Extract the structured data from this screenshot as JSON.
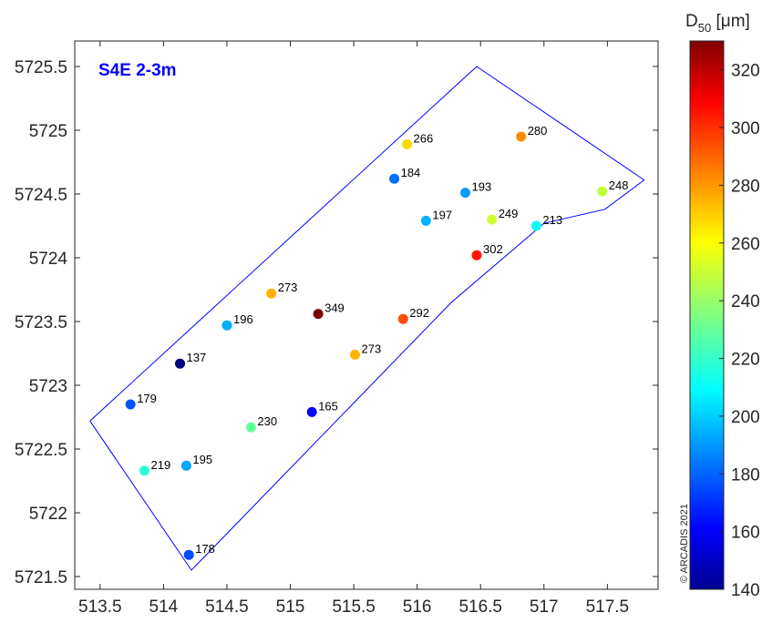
{
  "chart_data": {
    "type": "scatter",
    "title": "S4E 2-3m",
    "title_color": "#0000ff",
    "xlim": [
      513.3,
      517.9
    ],
    "ylim": [
      5721.4,
      5725.7
    ],
    "xticks": [
      513.5,
      514,
      514.5,
      515,
      515.5,
      516,
      516.5,
      517,
      517.5
    ],
    "xtick_labels": [
      "513.5",
      "514",
      "514.5",
      "515",
      "515.5",
      "516",
      "516.5",
      "517",
      "517.5"
    ],
    "yticks": [
      5721.5,
      5722,
      5722.5,
      5723,
      5723.5,
      5724,
      5724.5,
      5725,
      5725.5
    ],
    "ytick_labels": [
      "5721.5",
      "5722",
      "5722.5",
      "5723",
      "5723.5",
      "5724",
      "5724.5",
      "5725",
      "5725.5"
    ],
    "grid": false,
    "points": [
      {
        "x": 515.92,
        "y": 5724.89,
        "value": 266,
        "label": "266"
      },
      {
        "x": 516.82,
        "y": 5724.95,
        "value": 280,
        "label": "280"
      },
      {
        "x": 515.82,
        "y": 5724.62,
        "value": 184,
        "label": "184"
      },
      {
        "x": 516.38,
        "y": 5724.51,
        "value": 193,
        "label": "193"
      },
      {
        "x": 517.46,
        "y": 5724.52,
        "value": 248,
        "label": "248"
      },
      {
        "x": 516.07,
        "y": 5724.29,
        "value": 197,
        "label": "197"
      },
      {
        "x": 516.59,
        "y": 5724.3,
        "value": 249,
        "label": "249"
      },
      {
        "x": 516.94,
        "y": 5724.25,
        "value": 213,
        "label": "213"
      },
      {
        "x": 516.47,
        "y": 5724.02,
        "value": 302,
        "label": "302"
      },
      {
        "x": 514.85,
        "y": 5723.72,
        "value": 273,
        "label": "273"
      },
      {
        "x": 515.22,
        "y": 5723.56,
        "value": 349,
        "label": "349"
      },
      {
        "x": 514.5,
        "y": 5723.47,
        "value": 196,
        "label": "196"
      },
      {
        "x": 515.89,
        "y": 5723.52,
        "value": 292,
        "label": "292"
      },
      {
        "x": 515.51,
        "y": 5723.24,
        "value": 273,
        "label": "273"
      },
      {
        "x": 514.13,
        "y": 5723.17,
        "value": 137,
        "label": "137"
      },
      {
        "x": 513.74,
        "y": 5722.85,
        "value": 179,
        "label": "179"
      },
      {
        "x": 515.17,
        "y": 5722.79,
        "value": 165,
        "label": "165"
      },
      {
        "x": 514.69,
        "y": 5722.67,
        "value": 230,
        "label": "230"
      },
      {
        "x": 513.85,
        "y": 5722.33,
        "value": 219,
        "label": "219"
      },
      {
        "x": 514.18,
        "y": 5722.37,
        "value": 195,
        "label": "195"
      },
      {
        "x": 514.2,
        "y": 5721.67,
        "value": 178,
        "label": "178"
      }
    ],
    "boundary": [
      [
        513.42,
        5722.72
      ],
      [
        516.47,
        5725.5
      ],
      [
        517.79,
        5724.61
      ],
      [
        517.48,
        5724.38
      ],
      [
        517.26,
        5724.33
      ],
      [
        517.0,
        5724.27
      ],
      [
        516.27,
        5723.65
      ],
      [
        514.22,
        5721.55
      ],
      [
        513.42,
        5722.72
      ]
    ],
    "boundary_color": "#0000ff",
    "colorbar": {
      "title": "D50 [μm]",
      "title_main": "D",
      "title_sub": "50",
      "title_unit": " [μm]",
      "range": [
        140,
        330
      ],
      "ticks": [
        140,
        160,
        180,
        200,
        220,
        240,
        260,
        280,
        300,
        320
      ],
      "tick_labels": [
        "140",
        "160",
        "180",
        "200",
        "220",
        "240",
        "260",
        "280",
        "300",
        "320"
      ],
      "colormap": "jet"
    },
    "copyright": "© ARCADIS 2021"
  }
}
